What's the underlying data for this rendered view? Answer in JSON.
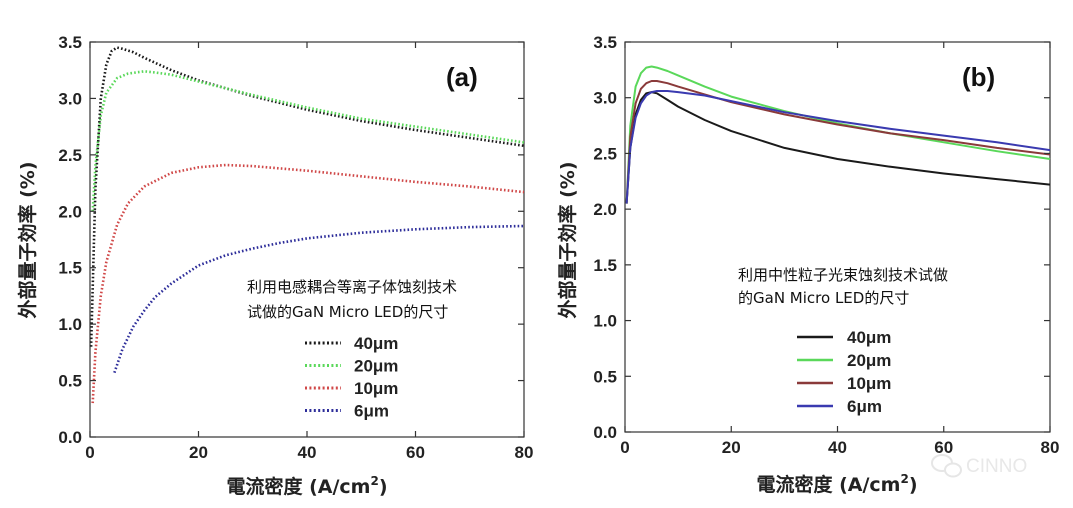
{
  "chart_data": [
    {
      "type": "line",
      "panel_label": "(a)",
      "title": "",
      "xlabel": "電流密度 (A/cm",
      "xlabel_sup": "2",
      "xlabel_end": ")",
      "ylabel": "外部量子効率 (%)",
      "xlim": [
        0,
        80
      ],
      "ylim": [
        0,
        3.5
      ],
      "x_ticks": [
        "0",
        "20",
        "40",
        "60",
        "80"
      ],
      "y_ticks": [
        "0.0",
        "0.5",
        "1.0",
        "1.5",
        "2.0",
        "2.5",
        "3.0",
        "3.5"
      ],
      "annotation": [
        "利用电感耦合等离子体蚀刻技术",
        "试做的GaN Micro LED的尺寸"
      ],
      "line_style": "dotted",
      "legend_position": "center-right",
      "series": [
        {
          "name": "40μm",
          "color": "#1a1a1a",
          "x": [
            0.2,
            1,
            2,
            3,
            4,
            5,
            6,
            8,
            10,
            15,
            20,
            30,
            40,
            50,
            60,
            70,
            80
          ],
          "y": [
            0.8,
            2.2,
            3.0,
            3.3,
            3.42,
            3.45,
            3.44,
            3.41,
            3.36,
            3.25,
            3.16,
            3.02,
            2.9,
            2.8,
            2.72,
            2.65,
            2.58
          ]
        },
        {
          "name": "20μm",
          "color": "#5ad85a",
          "x": [
            0.5,
            1,
            2,
            3,
            5,
            7,
            10,
            12,
            15,
            20,
            30,
            40,
            50,
            60,
            70,
            80
          ],
          "y": [
            2.0,
            2.4,
            2.85,
            3.05,
            3.18,
            3.22,
            3.24,
            3.23,
            3.21,
            3.15,
            3.03,
            2.92,
            2.82,
            2.75,
            2.68,
            2.61
          ]
        },
        {
          "name": "10μm",
          "color": "#d04848",
          "x": [
            0.5,
            1,
            2,
            3,
            5,
            7,
            10,
            15,
            20,
            25,
            30,
            40,
            50,
            60,
            70,
            80
          ],
          "y": [
            0.3,
            0.75,
            1.25,
            1.55,
            1.88,
            2.07,
            2.22,
            2.34,
            2.39,
            2.41,
            2.4,
            2.36,
            2.31,
            2.26,
            2.22,
            2.17
          ]
        },
        {
          "name": "6μm",
          "color": "#2e2e9a",
          "x": [
            4.5,
            6,
            8,
            10,
            12,
            15,
            20,
            25,
            30,
            35,
            40,
            50,
            60,
            70,
            80
          ],
          "y": [
            0.57,
            0.78,
            0.98,
            1.12,
            1.24,
            1.36,
            1.52,
            1.61,
            1.67,
            1.72,
            1.76,
            1.81,
            1.84,
            1.86,
            1.87
          ]
        }
      ]
    },
    {
      "type": "line",
      "panel_label": "(b)",
      "title": "",
      "xlabel": "電流密度 (A/cm",
      "xlabel_sup": "2",
      "xlabel_end": ")",
      "ylabel": "外部量子効率 (%)",
      "xlim": [
        0,
        80
      ],
      "ylim": [
        0,
        3.5
      ],
      "x_ticks": [
        "0",
        "20",
        "40",
        "60",
        "80"
      ],
      "y_ticks": [
        "0.0",
        "0.5",
        "1.0",
        "1.5",
        "2.0",
        "2.5",
        "3.0",
        "3.5"
      ],
      "annotation": [
        "利用中性粒子光束蚀刻技术试做",
        "的GaN Micro LED的尺寸"
      ],
      "line_style": "solid",
      "legend_position": "lower-center",
      "series": [
        {
          "name": "40μm",
          "color": "#1a1a1a",
          "x": [
            0.3,
            1,
            2,
            3,
            4,
            5,
            6,
            8,
            10,
            15,
            20,
            30,
            40,
            50,
            60,
            70,
            80
          ],
          "y": [
            2.05,
            2.55,
            2.85,
            2.98,
            3.04,
            3.05,
            3.04,
            2.98,
            2.92,
            2.8,
            2.7,
            2.55,
            2.45,
            2.38,
            2.32,
            2.27,
            2.22
          ]
        },
        {
          "name": "20μm",
          "color": "#5ad85a",
          "x": [
            0.3,
            1,
            2,
            3,
            4,
            5,
            6,
            8,
            10,
            15,
            20,
            30,
            40,
            50,
            60,
            70,
            80
          ],
          "y": [
            2.05,
            2.75,
            3.1,
            3.22,
            3.27,
            3.28,
            3.27,
            3.24,
            3.2,
            3.1,
            3.01,
            2.88,
            2.77,
            2.68,
            2.6,
            2.52,
            2.45
          ]
        },
        {
          "name": "10μm",
          "color": "#8a3a3a",
          "x": [
            0.3,
            1,
            2,
            3,
            4,
            5,
            6,
            8,
            10,
            15,
            20,
            30,
            40,
            50,
            60,
            70,
            80
          ],
          "y": [
            2.05,
            2.65,
            2.95,
            3.08,
            3.13,
            3.15,
            3.15,
            3.13,
            3.1,
            3.03,
            2.96,
            2.85,
            2.76,
            2.68,
            2.62,
            2.55,
            2.49
          ]
        },
        {
          "name": "6μm",
          "color": "#3a3ab0",
          "x": [
            0.3,
            1,
            2,
            3,
            4,
            5,
            6,
            8,
            10,
            15,
            20,
            30,
            40,
            50,
            60,
            70,
            80
          ],
          "y": [
            2.05,
            2.55,
            2.82,
            2.95,
            3.02,
            3.05,
            3.06,
            3.06,
            3.05,
            3.02,
            2.97,
            2.87,
            2.79,
            2.72,
            2.66,
            2.6,
            2.53
          ]
        }
      ]
    }
  ],
  "watermark": {
    "text": "CINNO",
    "icon": "wechat-icon"
  }
}
